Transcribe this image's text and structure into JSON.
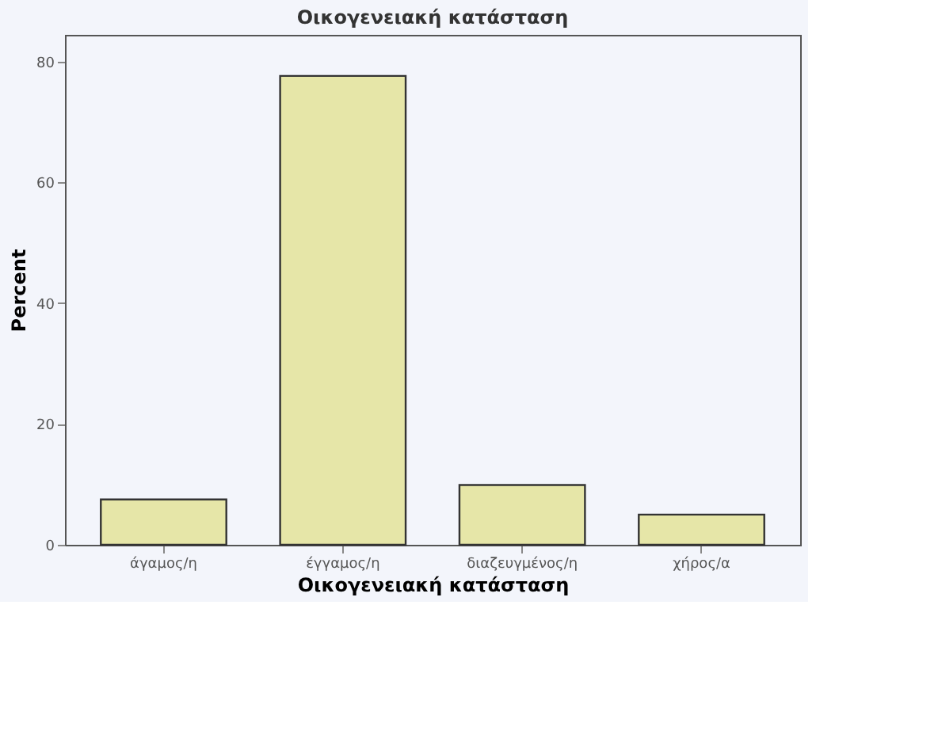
{
  "chart_data": {
    "type": "bar",
    "title": "Οικογενειακή κατάσταση",
    "xlabel": "Οικογενειακή κατάσταση",
    "ylabel": "Percent",
    "categories": [
      "άγαμος/η",
      "έγγαμος/η",
      "διαζευγμένος/η",
      "χήρος/α"
    ],
    "values": [
      7.5,
      77.6,
      9.9,
      5.0
    ],
    "color": "#e6e6a8",
    "ylim": [
      0,
      84.4
    ],
    "yticks": [
      0,
      20,
      40,
      60,
      80
    ],
    "grid": false
  }
}
